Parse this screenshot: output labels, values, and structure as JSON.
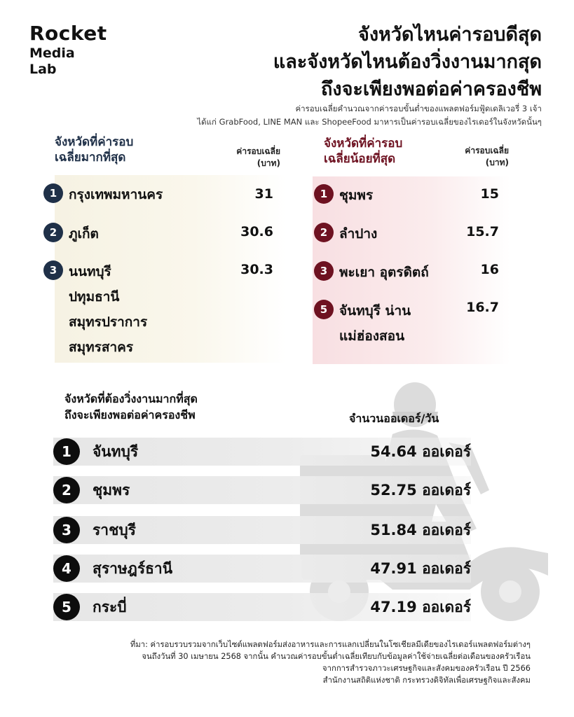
{
  "brand": {
    "line1": "Rocket",
    "line2": "Media",
    "line3": "Lab"
  },
  "title": {
    "line1": "จังหวัดไหนค่ารอบดีสุด",
    "line2": "และจังหวัดไหนต้องวิ่งงานมากสุด",
    "line3": "ถึงจะเพียงพอต่อค่าครองชีพ"
  },
  "subtitle": {
    "line1": "ค่ารอบเฉลี่ยคำนวณจากค่ารอบขั้นต่ำของแพลตฟอร์มฟู้ดเดลิเวอรี่ 3 เจ้า",
    "line2": "ได้แก่ GrabFood, LINE MAN และ ShopeeFood มาหารเป็นค่ารอบเฉลี่ยของไรเดอร์ในจังหวัดนั้นๆ"
  },
  "highest": {
    "heading_line1": "จังหวัดที่ค่ารอบ",
    "heading_line2": "เฉลี่ยมากที่สุด",
    "col_line1": "ค่ารอบเฉลี่ย",
    "col_line2": "(บาท)",
    "rows": [
      {
        "rank": "1",
        "names": [
          "กรุงเทพมหานคร"
        ],
        "value": "31"
      },
      {
        "rank": "2",
        "names": [
          "ภูเก็ต"
        ],
        "value": "30.6"
      },
      {
        "rank": "3",
        "names": [
          "นนทบุรี",
          "ปทุมธานี",
          "สมุทรปราการ",
          "สมุทรสาคร"
        ],
        "value": "30.3"
      }
    ]
  },
  "lowest": {
    "heading_line1": "จังหวัดที่ค่ารอบ",
    "heading_line2": "เฉลี่ยน้อยที่สุด",
    "col_line1": "ค่ารอบเฉลี่ย",
    "col_line2": "(บาท)",
    "rows": [
      {
        "rank": "1",
        "names": [
          "ชุมพร"
        ],
        "value": "15"
      },
      {
        "rank": "2",
        "names": [
          "ลำปาง"
        ],
        "value": "15.7"
      },
      {
        "rank": "3",
        "names": [
          "พะเยา อุตรดิตถ์"
        ],
        "value": "16"
      },
      {
        "rank": "5",
        "names": [
          "จันทบุรี น่าน",
          "แม่ฮ่องสอน"
        ],
        "value": "16.7"
      }
    ]
  },
  "orders": {
    "heading_line1": "จังหวัดที่ต้องวิ่งงานมากที่สุด",
    "heading_line2": "ถึงจะเพียงพอต่อค่าครองชีพ",
    "col_label": "จำนวนออเดอร์/วัน",
    "rows": [
      {
        "rank": "1",
        "name": "จันทบุรี",
        "value": "54.64 ออเดอร์"
      },
      {
        "rank": "2",
        "name": "ชุมพร",
        "value": "52.75 ออเดอร์"
      },
      {
        "rank": "3",
        "name": "ราชบุรี",
        "value": "51.84 ออเดอร์"
      },
      {
        "rank": "4",
        "name": "สุราษฎร์ธานี",
        "value": "47.91 ออเดอร์"
      },
      {
        "rank": "5",
        "name": "กระบี่",
        "value": "47.19 ออเดอร์"
      }
    ]
  },
  "source": {
    "line1": "ที่มา: ค่ารอบรวบรวมจากเว็บไซต์แพลตฟอร์มส่งอาหารและการแลกเปลี่ยนในโซเชียลมีเดียของไรเดอร์แพลตฟอร์มต่างๆ",
    "line2": "จนถึงวันที่ 30 เมษายน 2568 จากนั้น คำนวณค่ารอบขั้นต่ำเฉลี่ยเทียบกับข้อมูลค่าใช้จ่ายเฉลี่ยต่อเดือนของครัวเรือน",
    "line3": "จากการสำรวจภาวะเศรษฐกิจและสังคมของครัวเรือน ปี 2566",
    "line4": "สำนักงานสถิติแห่งชาติ กระทรวงดิจิทัลเพื่อเศรษฐกิจและสังคม"
  },
  "colors": {
    "navy": "#1f3048",
    "maroon": "#6e1221",
    "left_panel": "#f6f2e3",
    "right_panel": "#f8dfe2",
    "bar": "#e6e6e6",
    "rider_silhouette": "#dcdcdc"
  },
  "icons": {
    "rider": "delivery-rider-silhouette-icon"
  }
}
